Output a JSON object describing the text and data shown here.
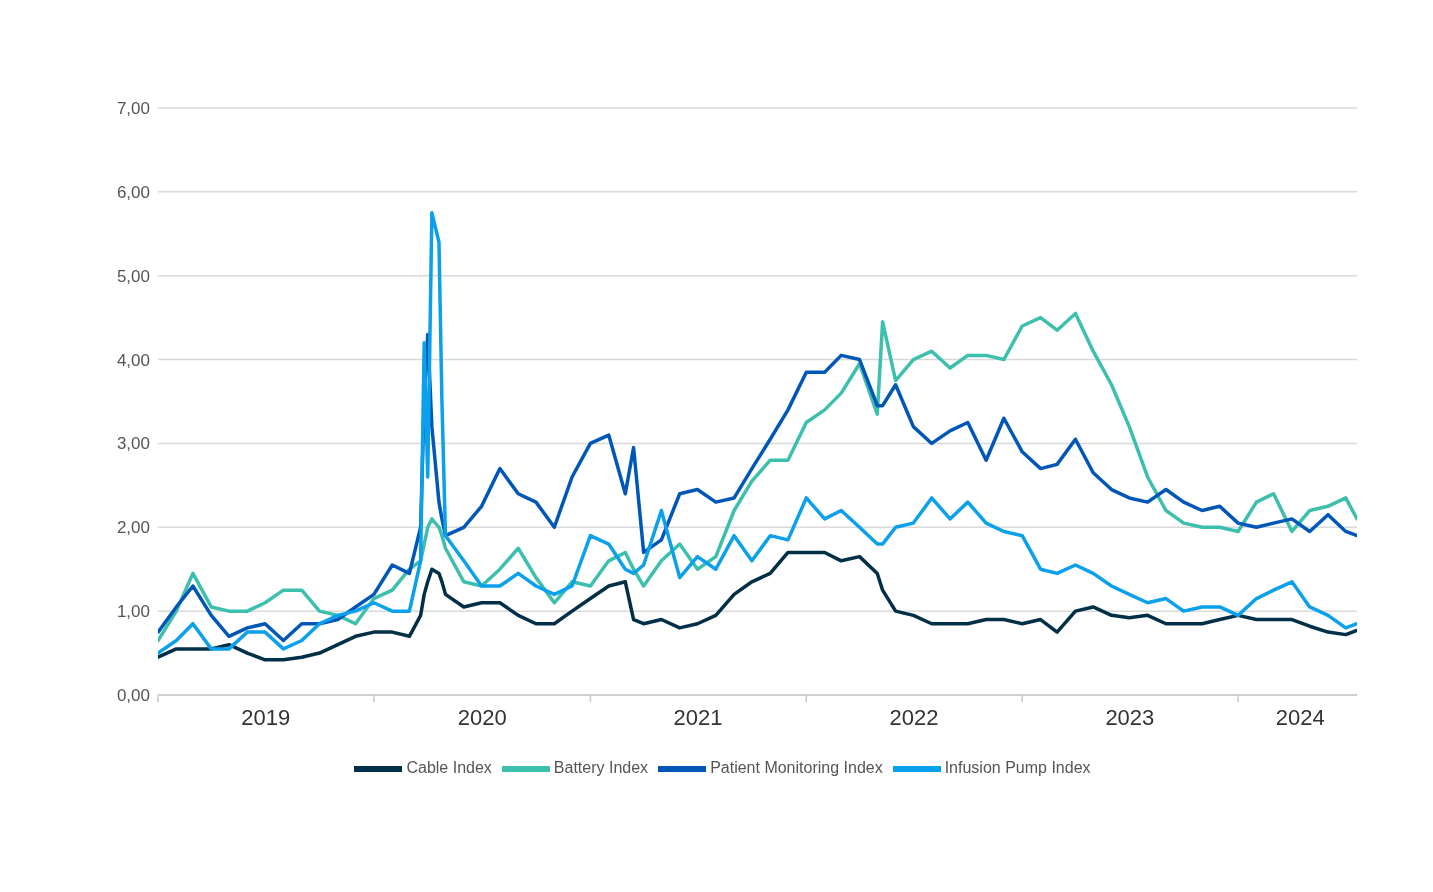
{
  "chart_data": {
    "type": "line",
    "x": [
      "2019-01-01",
      "2019-02-01",
      "2019-03-01",
      "2019-04-01",
      "2019-05-01",
      "2019-06-01",
      "2019-07-01",
      "2019-08-01",
      "2019-09-01",
      "2019-10-01",
      "2019-11-01",
      "2019-12-01",
      "2020-01-01",
      "2020-02-01",
      "2020-03-01",
      "2020-03-20",
      "2020-03-26",
      "2020-04-01",
      "2020-04-08",
      "2020-04-20",
      "2020-04-25",
      "2020-05-01",
      "2020-06-01",
      "2020-07-01",
      "2020-08-01",
      "2020-09-01",
      "2020-10-01",
      "2020-11-01",
      "2020-12-01",
      "2021-01-01",
      "2021-02-01",
      "2021-03-01",
      "2021-03-15",
      "2021-04-01",
      "2021-05-01",
      "2021-06-01",
      "2021-07-01",
      "2021-08-01",
      "2021-09-01",
      "2021-10-01",
      "2021-11-01",
      "2021-12-01",
      "2022-01-01",
      "2022-02-01",
      "2022-03-01",
      "2022-04-01",
      "2022-05-01",
      "2022-05-10",
      "2022-06-01",
      "2022-07-01",
      "2022-08-01",
      "2022-09-01",
      "2022-10-01",
      "2022-11-01",
      "2022-12-01",
      "2023-01-01",
      "2023-02-01",
      "2023-03-01",
      "2023-04-01",
      "2023-05-01",
      "2023-06-01",
      "2023-07-01",
      "2023-08-01",
      "2023-09-01",
      "2023-10-01",
      "2023-11-01",
      "2023-12-01",
      "2024-01-01",
      "2024-02-01",
      "2024-03-01",
      "2024-04-01",
      "2024-05-01",
      "2024-06-01",
      "2024-07-01",
      "2024-07-20"
    ],
    "series": [
      {
        "name": "Cable Index",
        "color": "#002f47",
        "values": [
          0.45,
          0.55,
          0.55,
          0.55,
          0.6,
          0.5,
          0.42,
          0.42,
          0.45,
          0.5,
          0.6,
          0.7,
          0.75,
          0.75,
          0.7,
          0.95,
          1.2,
          1.35,
          1.5,
          1.45,
          1.35,
          1.2,
          1.05,
          1.1,
          1.1,
          0.95,
          0.85,
          0.85,
          1.0,
          1.15,
          1.3,
          1.35,
          0.9,
          0.85,
          0.9,
          0.8,
          0.85,
          0.95,
          1.2,
          1.35,
          1.45,
          1.7,
          1.7,
          1.7,
          1.6,
          1.65,
          1.45,
          1.25,
          1.0,
          0.95,
          0.85,
          0.85,
          0.85,
          0.9,
          0.9,
          0.85,
          0.9,
          0.75,
          1.0,
          1.05,
          0.95,
          0.92,
          0.95,
          0.85,
          0.85,
          0.85,
          0.9,
          0.95,
          0.9,
          0.9,
          0.9,
          0.82,
          0.75,
          0.72,
          0.77
        ]
      },
      {
        "name": "Battery Index",
        "color": "#3dbfad",
        "values": [
          0.65,
          1.0,
          1.45,
          1.05,
          1.0,
          1.0,
          1.1,
          1.25,
          1.25,
          1.0,
          0.95,
          0.85,
          1.15,
          1.25,
          1.5,
          1.6,
          1.8,
          2.0,
          2.1,
          2.0,
          1.9,
          1.75,
          1.35,
          1.3,
          1.5,
          1.75,
          1.4,
          1.1,
          1.35,
          1.3,
          1.6,
          1.7,
          1.5,
          1.3,
          1.6,
          1.8,
          1.5,
          1.65,
          2.2,
          2.55,
          2.8,
          2.8,
          3.25,
          3.4,
          3.6,
          3.95,
          3.35,
          4.45,
          3.75,
          4.0,
          4.1,
          3.9,
          4.05,
          4.05,
          4.0,
          4.4,
          4.5,
          4.35,
          4.55,
          4.1,
          3.7,
          3.2,
          2.6,
          2.2,
          2.05,
          2.0,
          2.0,
          1.95,
          2.3,
          2.4,
          1.95,
          2.2,
          2.25,
          2.35,
          2.1
        ]
      },
      {
        "name": "Patient Monitoring Index",
        "color": "#0057b8",
        "values": [
          0.75,
          1.05,
          1.3,
          0.95,
          0.7,
          0.8,
          0.85,
          0.65,
          0.85,
          0.85,
          0.9,
          1.05,
          1.2,
          1.55,
          1.45,
          2.0,
          3.5,
          4.3,
          3.2,
          2.3,
          2.1,
          1.9,
          2.0,
          2.25,
          2.7,
          2.4,
          2.3,
          2.0,
          2.6,
          3.0,
          3.1,
          2.4,
          2.95,
          1.7,
          1.85,
          2.4,
          2.45,
          2.3,
          2.35,
          2.7,
          3.05,
          3.4,
          3.85,
          3.85,
          4.05,
          4.0,
          3.45,
          3.45,
          3.7,
          3.2,
          3.0,
          3.15,
          3.25,
          2.8,
          3.3,
          2.9,
          2.7,
          2.75,
          3.05,
          2.65,
          2.45,
          2.35,
          2.3,
          2.45,
          2.3,
          2.2,
          2.25,
          2.05,
          2.0,
          2.05,
          2.1,
          1.95,
          2.15,
          1.95,
          1.9
        ]
      },
      {
        "name": "Infusion Pump Index",
        "color": "#0aa0ec",
        "values": [
          0.5,
          0.65,
          0.85,
          0.55,
          0.55,
          0.75,
          0.75,
          0.55,
          0.65,
          0.85,
          0.95,
          1.0,
          1.1,
          1.0,
          1.0,
          1.6,
          4.2,
          2.6,
          5.75,
          5.4,
          3.5,
          1.9,
          1.6,
          1.3,
          1.3,
          1.45,
          1.3,
          1.2,
          1.3,
          1.9,
          1.8,
          1.5,
          1.45,
          1.55,
          2.2,
          1.4,
          1.65,
          1.5,
          1.9,
          1.6,
          1.9,
          1.85,
          2.35,
          2.1,
          2.2,
          2.0,
          1.8,
          1.8,
          2.0,
          2.05,
          2.35,
          2.1,
          2.3,
          2.05,
          1.95,
          1.9,
          1.5,
          1.45,
          1.55,
          1.45,
          1.3,
          1.2,
          1.1,
          1.15,
          1.0,
          1.05,
          1.05,
          0.95,
          1.15,
          1.25,
          1.35,
          1.05,
          0.95,
          0.8,
          0.85
        ]
      }
    ],
    "xlim": [
      "2019-01-01",
      "2024-07-20"
    ],
    "xticks": [
      {
        "value": "2019-01-01",
        "label": null
      },
      {
        "value": "2019-07-02",
        "label": "2019"
      },
      {
        "value": "2020-01-01",
        "label": null
      },
      {
        "value": "2020-07-02",
        "label": "2020"
      },
      {
        "value": "2021-01-01",
        "label": null
      },
      {
        "value": "2021-07-02",
        "label": "2021"
      },
      {
        "value": "2022-01-01",
        "label": null
      },
      {
        "value": "2022-07-02",
        "label": "2022"
      },
      {
        "value": "2023-01-01",
        "label": null
      },
      {
        "value": "2023-07-02",
        "label": "2023"
      },
      {
        "value": "2024-01-01",
        "label": null
      },
      {
        "value": "2024-04-15",
        "label": "2024"
      }
    ],
    "ylim": [
      0,
      7
    ],
    "yticks": [
      {
        "value": 0,
        "label": "0,00"
      },
      {
        "value": 1,
        "label": "1,00"
      },
      {
        "value": 2,
        "label": "2,00"
      },
      {
        "value": 3,
        "label": "3,00"
      },
      {
        "value": 4,
        "label": "4,00"
      },
      {
        "value": 5,
        "label": "5,00"
      },
      {
        "value": 6,
        "label": "6,00"
      },
      {
        "value": 7,
        "label": "7,00"
      }
    ],
    "grid": "y",
    "legend": "bottom",
    "marker": "none",
    "line_style": "solid"
  }
}
